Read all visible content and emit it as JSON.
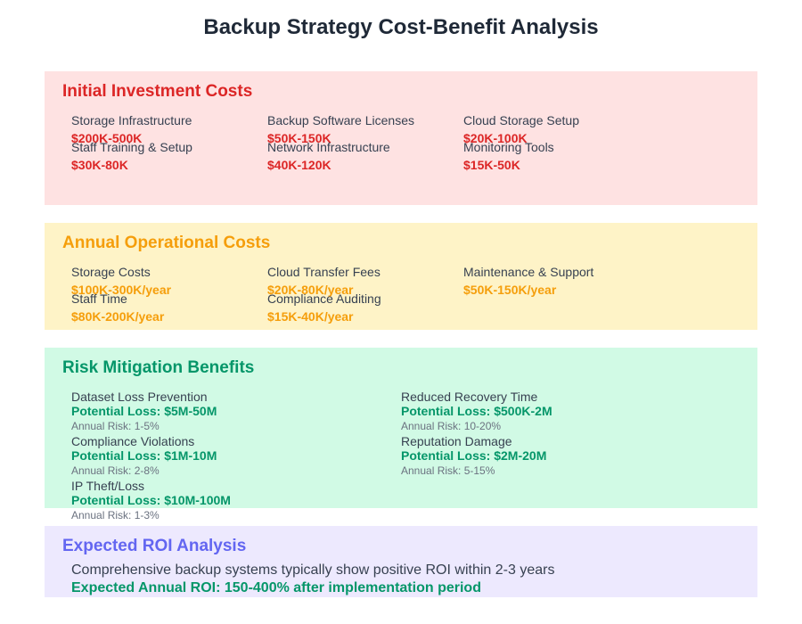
{
  "title": "Backup Strategy Cost-Benefit Analysis",
  "initial_costs": {
    "heading": "Initial Investment Costs",
    "items": [
      {
        "label": "Storage Infrastructure",
        "value": "$200K-500K"
      },
      {
        "label": "Backup Software Licenses",
        "value": "$50K-150K"
      },
      {
        "label": "Cloud Storage Setup",
        "value": "$20K-100K"
      },
      {
        "label": "Staff Training & Setup",
        "value": "$30K-80K"
      },
      {
        "label": "Network Infrastructure",
        "value": "$40K-120K"
      },
      {
        "label": "Monitoring Tools",
        "value": "$15K-50K"
      }
    ]
  },
  "operational_costs": {
    "heading": "Annual Operational Costs",
    "items": [
      {
        "label": "Storage Costs",
        "value": "$100K-300K/year"
      },
      {
        "label": "Cloud Transfer Fees",
        "value": "$20K-80K/year"
      },
      {
        "label": "Maintenance & Support",
        "value": "$50K-150K/year"
      },
      {
        "label": "Staff Time",
        "value": "$80K-200K/year"
      },
      {
        "label": "Compliance Auditing",
        "value": "$15K-40K/year"
      }
    ]
  },
  "risk_benefits": {
    "heading": "Risk Mitigation Benefits",
    "items": [
      {
        "label": "Dataset Loss Prevention",
        "value": "Potential Loss: $5M-50M",
        "risk": "Annual Risk: 1-5%"
      },
      {
        "label": "Reduced Recovery Time",
        "value": "Potential Loss: $500K-2M",
        "risk": "Annual Risk: 10-20%"
      },
      {
        "label": "Compliance Violations",
        "value": "Potential Loss: $1M-10M",
        "risk": "Annual Risk: 2-8%"
      },
      {
        "label": "Reputation Damage",
        "value": "Potential Loss: $2M-20M",
        "risk": "Annual Risk: 5-15%"
      },
      {
        "label": "IP Theft/Loss",
        "value": "Potential Loss: $10M-100M",
        "risk": "Annual Risk: 1-3%"
      }
    ]
  },
  "roi": {
    "heading": "Expected ROI Analysis",
    "text": "Comprehensive backup systems typically show positive ROI within 2-3 years",
    "highlight": "Expected Annual ROI: 150-400% after implementation period"
  }
}
